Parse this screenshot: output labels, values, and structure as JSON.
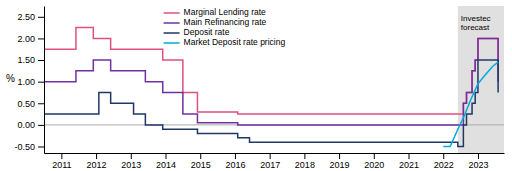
{
  "chart_data": {
    "type": "line",
    "y_label": "%",
    "xlim": [
      2010.5,
      2023.75
    ],
    "ylim": [
      -0.65,
      2.75
    ],
    "yticks": [
      {
        "value": -0.5,
        "label": "-0.50"
      },
      {
        "value": 0.0,
        "label": "0.00"
      },
      {
        "value": 0.5,
        "label": "0.50"
      },
      {
        "value": 1.0,
        "label": "1.00"
      },
      {
        "value": 1.5,
        "label": "1.50"
      },
      {
        "value": 2.0,
        "label": "2.00"
      },
      {
        "value": 2.5,
        "label": "2.50"
      }
    ],
    "xticks": [
      2011,
      2012,
      2013,
      2014,
      2015,
      2016,
      2017,
      2018,
      2019,
      2020,
      2021,
      2022,
      2023
    ],
    "grid": false,
    "legend": "top",
    "shaded_regions": [
      {
        "start": 2022.42,
        "color": "#e0e0e0"
      }
    ],
    "reference_lines": [
      {
        "y": 0,
        "color": "#aaaaaa"
      }
    ],
    "annotations": [
      {
        "text": "Investec\nforecast",
        "x": 2022.42,
        "y": 2.55
      }
    ],
    "series": [
      {
        "name": "Marginal Lending rate",
        "color": "#e05080",
        "type": "step",
        "x": [
          2010.5,
          2011.08,
          2011.42,
          2011.92,
          2012.42,
          2013.92,
          2014.5,
          2014.92,
          2016.08,
          2022.42,
          2022.58,
          2022.67,
          2022.83,
          2022.92,
          2023.0,
          2023.58
        ],
        "values": [
          1.75,
          1.75,
          2.25,
          2.0,
          1.75,
          1.5,
          0.75,
          0.3,
          0.25,
          0.25,
          0.5,
          0.75,
          1.25,
          1.5,
          2.0,
          1.25
        ]
      },
      {
        "name": "Main Refinancing rate",
        "color": "#7030a0",
        "type": "step",
        "x": [
          2010.5,
          2011.08,
          2011.42,
          2011.92,
          2012.42,
          2013.42,
          2013.92,
          2014.5,
          2014.92,
          2016.08,
          2022.42,
          2022.58,
          2022.67,
          2022.83,
          2022.92,
          2023.0,
          2023.58
        ],
        "values": [
          1.0,
          1.0,
          1.25,
          1.5,
          1.25,
          1.0,
          0.75,
          0.25,
          0.05,
          0.0,
          0.0,
          0.5,
          0.75,
          1.25,
          1.5,
          2.0,
          1.0
        ]
      },
      {
        "name": "Deposit rate",
        "color": "#1f3864",
        "type": "step",
        "x": [
          2010.5,
          2011.42,
          2012.08,
          2012.42,
          2013.08,
          2013.42,
          2013.92,
          2014.5,
          2014.92,
          2016.08,
          2016.42,
          2022.42,
          2022.58,
          2022.67,
          2022.83,
          2022.92,
          2023.0,
          2023.58
        ],
        "values": [
          0.25,
          0.25,
          0.75,
          0.5,
          0.25,
          0.0,
          -0.1,
          -0.1,
          -0.2,
          -0.3,
          -0.4,
          -0.5,
          0.0,
          0.25,
          0.5,
          0.75,
          1.5,
          0.75
        ]
      },
      {
        "name": "Market Deposit rate pricing",
        "color": "#00aadd",
        "type": "line",
        "x": [
          2022.0,
          2022.2,
          2022.42,
          2022.6,
          2022.8,
          2023.0,
          2023.2,
          2023.42,
          2023.58
        ],
        "values": [
          -0.5,
          -0.5,
          -0.1,
          0.2,
          0.6,
          0.95,
          1.15,
          1.35,
          1.45
        ]
      }
    ]
  }
}
